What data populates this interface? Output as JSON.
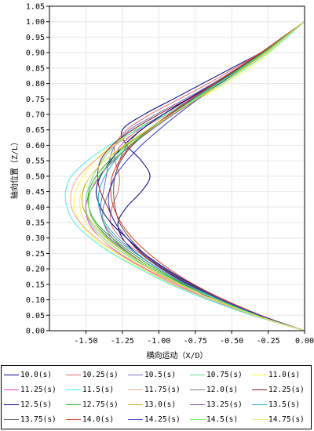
{
  "chart_data": {
    "type": "line",
    "xlabel": "横向运动（X/D）",
    "ylabel": "轴向位置（Z/L）",
    "xlim": [
      -1.75,
      0.0
    ],
    "ylim": [
      0.0,
      1.05
    ],
    "x_ticks": [
      "-1.50",
      "-1.25",
      "-1.00",
      "-0.75",
      "-0.50",
      "-0.25",
      "0.00"
    ],
    "y_ticks": [
      "0.00",
      "0.05",
      "0.10",
      "0.15",
      "0.20",
      "0.25",
      "0.30",
      "0.35",
      "0.40",
      "0.45",
      "0.50",
      "0.55",
      "0.60",
      "0.65",
      "0.70",
      "0.75",
      "0.80",
      "0.85",
      "0.90",
      "0.95",
      "1.00",
      "1.05"
    ],
    "z": [
      0.0,
      0.05,
      0.1,
      0.15,
      0.2,
      0.25,
      0.3,
      0.35,
      0.4,
      0.45,
      0.5,
      0.55,
      0.6,
      0.65,
      0.7,
      0.75,
      0.8,
      0.85,
      0.9,
      0.95,
      1.0
    ],
    "series": [
      {
        "name": "10.0(s)",
        "color": "#000080",
        "x": [
          0.0,
          -0.35,
          -0.62,
          -0.82,
          -1.0,
          -1.15,
          -1.25,
          -1.28,
          -1.22,
          -1.12,
          -1.06,
          -1.12,
          -1.22,
          -1.25,
          -1.1,
          -0.9,
          -0.7,
          -0.5,
          -0.3,
          -0.15,
          0.0
        ]
      },
      {
        "name": "10.25(s)",
        "color": "#e06666",
        "x": [
          0.0,
          -0.32,
          -0.58,
          -0.8,
          -0.98,
          -1.13,
          -1.26,
          -1.33,
          -1.32,
          -1.28,
          -1.27,
          -1.3,
          -1.3,
          -1.22,
          -1.06,
          -0.86,
          -0.66,
          -0.48,
          -0.3,
          -0.15,
          0.0
        ]
      },
      {
        "name": "10.5(s)",
        "color": "#7070c0",
        "x": [
          0.0,
          -0.33,
          -0.6,
          -0.82,
          -1.0,
          -1.16,
          -1.3,
          -1.38,
          -1.4,
          -1.38,
          -1.36,
          -1.34,
          -1.3,
          -1.2,
          -1.02,
          -0.82,
          -0.63,
          -0.46,
          -0.29,
          -0.14,
          0.0
        ]
      },
      {
        "name": "10.75(s)",
        "color": "#66dd88",
        "x": [
          0.0,
          -0.34,
          -0.62,
          -0.86,
          -1.06,
          -1.24,
          -1.38,
          -1.47,
          -1.5,
          -1.49,
          -1.45,
          -1.39,
          -1.3,
          -1.16,
          -0.97,
          -0.77,
          -0.58,
          -0.42,
          -0.27,
          -0.13,
          0.0
        ]
      },
      {
        "name": "11.0(s)",
        "color": "#ffff44",
        "x": [
          0.0,
          -0.36,
          -0.66,
          -0.91,
          -1.12,
          -1.3,
          -1.45,
          -1.54,
          -1.58,
          -1.57,
          -1.52,
          -1.44,
          -1.32,
          -1.15,
          -0.94,
          -0.73,
          -0.54,
          -0.38,
          -0.24,
          -0.12,
          0.0
        ]
      },
      {
        "name": "11.25(s)",
        "color": "#dd44dd",
        "x": [
          0.0,
          -0.35,
          -0.64,
          -0.88,
          -1.09,
          -1.27,
          -1.4,
          -1.48,
          -1.5,
          -1.47,
          -1.4,
          -1.33,
          -1.26,
          -1.14,
          -0.97,
          -0.79,
          -0.61,
          -0.44,
          -0.28,
          -0.14,
          0.0
        ]
      },
      {
        "name": "11.5(s)",
        "color": "#44eeee",
        "x": [
          0.0,
          -0.36,
          -0.66,
          -0.92,
          -1.13,
          -1.32,
          -1.47,
          -1.58,
          -1.63,
          -1.64,
          -1.6,
          -1.49,
          -1.34,
          -1.15,
          -0.95,
          -0.75,
          -0.56,
          -0.4,
          -0.25,
          -0.12,
          0.0
        ]
      },
      {
        "name": "11.75(s)",
        "color": "#eeaa88",
        "x": [
          0.0,
          -0.35,
          -0.64,
          -0.9,
          -1.1,
          -1.28,
          -1.43,
          -1.54,
          -1.6,
          -1.6,
          -1.55,
          -1.44,
          -1.3,
          -1.13,
          -0.94,
          -0.75,
          -0.57,
          -0.41,
          -0.26,
          -0.13,
          0.0
        ]
      },
      {
        "name": "12.0(s)",
        "color": "#808080",
        "x": [
          0.0,
          -0.33,
          -0.6,
          -0.84,
          -1.04,
          -1.2,
          -1.32,
          -1.38,
          -1.38,
          -1.34,
          -1.3,
          -1.27,
          -1.22,
          -1.12,
          -0.97,
          -0.8,
          -0.62,
          -0.45,
          -0.29,
          -0.14,
          0.0
        ]
      },
      {
        "name": "12.25(s)",
        "color": "#8b1a1a",
        "x": [
          0.0,
          -0.32,
          -0.58,
          -0.8,
          -0.98,
          -1.12,
          -1.22,
          -1.3,
          -1.35,
          -1.4,
          -1.42,
          -1.4,
          -1.32,
          -1.18,
          -1.0,
          -0.8,
          -0.61,
          -0.44,
          -0.28,
          -0.14,
          0.0
        ]
      },
      {
        "name": "12.5(s)",
        "color": "#000080",
        "x": [
          0.0,
          -0.31,
          -0.56,
          -0.77,
          -0.95,
          -1.1,
          -1.22,
          -1.33,
          -1.4,
          -1.43,
          -1.4,
          -1.33,
          -1.24,
          -1.12,
          -0.97,
          -0.8,
          -0.62,
          -0.45,
          -0.29,
          -0.14,
          0.0
        ]
      },
      {
        "name": "12.75(s)",
        "color": "#22aa22",
        "x": [
          0.0,
          -0.33,
          -0.6,
          -0.83,
          -1.02,
          -1.18,
          -1.32,
          -1.43,
          -1.48,
          -1.48,
          -1.43,
          -1.34,
          -1.22,
          -1.08,
          -0.92,
          -0.76,
          -0.59,
          -0.43,
          -0.28,
          -0.14,
          0.0
        ]
      },
      {
        "name": "13.0(s)",
        "color": "#ccaa22",
        "x": [
          0.0,
          -0.34,
          -0.62,
          -0.86,
          -1.06,
          -1.22,
          -1.36,
          -1.46,
          -1.52,
          -1.52,
          -1.47,
          -1.37,
          -1.23,
          -1.07,
          -0.9,
          -0.73,
          -0.57,
          -0.42,
          -0.27,
          -0.13,
          0.0
        ]
      },
      {
        "name": "13.25(s)",
        "color": "#8844aa",
        "x": [
          0.0,
          -0.33,
          -0.6,
          -0.84,
          -1.04,
          -1.2,
          -1.34,
          -1.44,
          -1.48,
          -1.47,
          -1.41,
          -1.31,
          -1.19,
          -1.05,
          -0.9,
          -0.74,
          -0.58,
          -0.43,
          -0.28,
          -0.14,
          0.0
        ]
      },
      {
        "name": "13.5(s)",
        "color": "#22aacc",
        "x": [
          0.0,
          -0.32,
          -0.58,
          -0.81,
          -1.0,
          -1.15,
          -1.28,
          -1.37,
          -1.41,
          -1.41,
          -1.37,
          -1.3,
          -1.2,
          -1.07,
          -0.92,
          -0.76,
          -0.6,
          -0.44,
          -0.29,
          -0.14,
          0.0
        ]
      },
      {
        "name": "13.75(s)",
        "color": "#555555",
        "x": [
          0.0,
          -0.31,
          -0.56,
          -0.78,
          -0.96,
          -1.1,
          -1.2,
          -1.27,
          -1.3,
          -1.31,
          -1.3,
          -1.26,
          -1.18,
          -1.06,
          -0.92,
          -0.77,
          -0.61,
          -0.45,
          -0.29,
          -0.14,
          0.0
        ]
      },
      {
        "name": "14.0(s)",
        "color": "#dd3322",
        "x": [
          0.0,
          -0.3,
          -0.55,
          -0.76,
          -0.93,
          -1.07,
          -1.18,
          -1.26,
          -1.31,
          -1.33,
          -1.32,
          -1.27,
          -1.19,
          -1.07,
          -0.93,
          -0.78,
          -0.62,
          -0.46,
          -0.3,
          -0.15,
          0.0
        ]
      },
      {
        "name": "14.25(s)",
        "color": "#3333cc",
        "x": [
          0.0,
          -0.31,
          -0.57,
          -0.79,
          -0.97,
          -1.11,
          -1.22,
          -1.3,
          -1.34,
          -1.34,
          -1.3,
          -1.22,
          -1.12,
          -1.0,
          -0.87,
          -0.73,
          -0.58,
          -0.43,
          -0.28,
          -0.14,
          0.0
        ]
      },
      {
        "name": "14.5(s)",
        "color": "#66ee44",
        "x": [
          0.0,
          -0.33,
          -0.6,
          -0.84,
          -1.04,
          -1.21,
          -1.35,
          -1.44,
          -1.48,
          -1.47,
          -1.41,
          -1.32,
          -1.2,
          -1.06,
          -0.91,
          -0.75,
          -0.59,
          -0.43,
          -0.28,
          -0.14,
          0.0
        ]
      },
      {
        "name": "14.75(s)",
        "color": "#eeee66",
        "x": [
          0.0,
          -0.34,
          -0.62,
          -0.87,
          -1.08,
          -1.26,
          -1.4,
          -1.5,
          -1.54,
          -1.53,
          -1.47,
          -1.37,
          -1.24,
          -1.08,
          -0.91,
          -0.74,
          -0.57,
          -0.41,
          -0.26,
          -0.13,
          0.0
        ]
      }
    ]
  }
}
